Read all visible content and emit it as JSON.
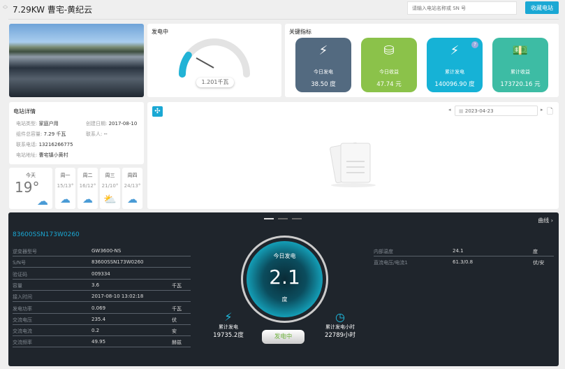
{
  "header": {
    "title": "7.29KW 曹宅-黄纪云",
    "search_placeholder": "请输入电站名称或 SN 号",
    "favorite_button": "收藏电站"
  },
  "gauge": {
    "title": "发电中",
    "value_label": "1.201千瓦",
    "fill_fraction": 0.2
  },
  "key_metrics": {
    "title": "关键指标",
    "items": [
      {
        "label": "今日发电",
        "value": "38.50 度",
        "color": "#536a80",
        "icon": "lightning-icon"
      },
      {
        "label": "今日收益",
        "value": "47.74 元",
        "color": "#8bc24a",
        "icon": "coins-icon"
      },
      {
        "label": "累计发电",
        "value": "140096.90 度",
        "color": "#16b2d6",
        "icon": "lightning-icon"
      },
      {
        "label": "累计收益",
        "value": "173720.16 元",
        "color": "#3dbca4",
        "icon": "money-icon"
      }
    ]
  },
  "station": {
    "title": "电站详情",
    "type_label": "电站类型:",
    "type": "家庭户用",
    "created_label": "创建日期:",
    "created": "2017-08-10",
    "capacity_label": "组件总容量:",
    "capacity": "7.29 千瓦",
    "contact_label": "联系人:",
    "contact": "--",
    "phone_label": "联系电话:",
    "phone": "13216266775",
    "address_label": "电站地址:",
    "address": "曹宅镇小黄村"
  },
  "weather": {
    "today_label": "今天",
    "today_temp": "19°",
    "days": [
      {
        "day": "周一",
        "temp": "15/13°",
        "icon": "cloud-icon"
      },
      {
        "day": "周二",
        "temp": "16/12°",
        "icon": "cloud-icon"
      },
      {
        "day": "周三",
        "temp": "21/10°",
        "icon": "sun-cloud-icon"
      },
      {
        "day": "周四",
        "temp": "24/13°",
        "icon": "clouds-icon"
      }
    ]
  },
  "chart": {
    "date": "2023-04-23"
  },
  "inverter": {
    "sn_title": "83600SSN173W0260",
    "curve_link": "曲线 ›",
    "rows": [
      {
        "k": "逆变器型号",
        "v": "GW3600-NS",
        "u": ""
      },
      {
        "k": "S/N号",
        "v": "83600SSN173W0260",
        "u": ""
      },
      {
        "k": "验证码",
        "v": "009334",
        "u": ""
      },
      {
        "k": "容量",
        "v": "3.6",
        "u": "千瓦"
      },
      {
        "k": "接入时间",
        "v": "2017-08-10 13:02:18",
        "u": ""
      },
      {
        "k": "发电功率",
        "v": "0.069",
        "u": "千瓦"
      },
      {
        "k": "交流电压",
        "v": "235.4",
        "u": "伏"
      },
      {
        "k": "交流电流",
        "v": "0.2",
        "u": "安"
      },
      {
        "k": "交流频率",
        "v": "49.95",
        "u": "赫兹"
      }
    ],
    "right_rows": [
      {
        "k": "内部温度",
        "v": "24.1",
        "u": "度"
      },
      {
        "k": "直流电压/电流1",
        "v": "61.3/0.8",
        "u": "伏/安"
      }
    ],
    "today_label": "今日发电",
    "today_value": "2.1",
    "today_unit": "度",
    "total_label": "累计发电",
    "total_value": "19735.2度",
    "hours_label": "累计发电小时",
    "hours_value": "22789小时",
    "status": "发电中"
  }
}
